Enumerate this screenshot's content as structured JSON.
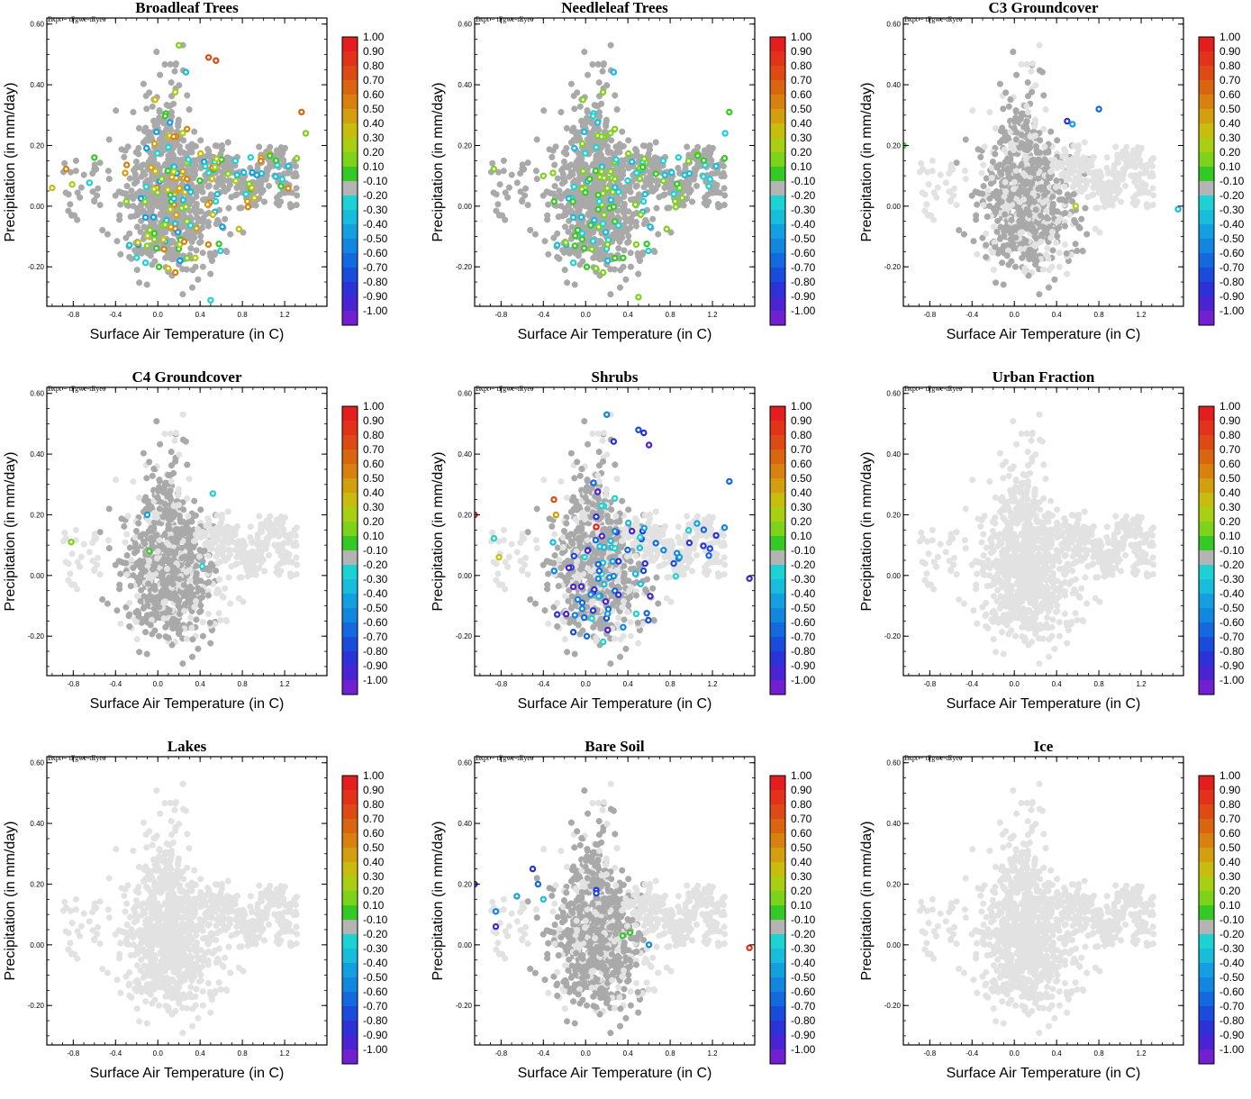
{
  "figure": {
    "expt_label": "Expt = tFgwe-tEyee",
    "xlabel": "Surface Air Temperature (in C)",
    "ylabel": "Precipitation (in mm/day)",
    "xticks": [
      "-0.8",
      "-0.4",
      "0.0",
      "0.4",
      "0.8",
      "1.2"
    ],
    "yticks": [
      "0.60",
      "0.40",
      "0.20",
      "0.00",
      "-0.20"
    ],
    "colorbar_labels": [
      "1.00",
      "0.90",
      "0.80",
      "0.70",
      "0.60",
      "0.50",
      "0.40",
      "0.30",
      "0.20",
      "0.10",
      "-0.10",
      "-0.20",
      "-0.30",
      "-0.40",
      "-0.50",
      "-0.60",
      "-0.70",
      "-0.80",
      "-0.90",
      "-1.00"
    ],
    "colorbar_colors": [
      "#e41e1e",
      "#e2321a",
      "#de4a14",
      "#d96511",
      "#d8810f",
      "#d49f0e",
      "#c8bc0f",
      "#a9cf14",
      "#7dd31a",
      "#35c926",
      "#b4b4b4",
      "#1dd2d2",
      "#17bddb",
      "#139fe0",
      "#1386e0",
      "#1469df",
      "#1a4cdc",
      "#2c31d8",
      "#4a24d3",
      "#7020cf"
    ],
    "point_colors": {
      "gray": "#a9a9a9",
      "light_gray": "#e2e2e2"
    }
  },
  "chart_data": [
    {
      "type": "scatter",
      "title": "Broadleaf Trees",
      "xlabel": "Surface Air Temperature (in C)",
      "ylabel": "Precipitation (in mm/day)",
      "xlim": [
        -1.05,
        1.6
      ],
      "ylim": [
        -0.33,
        0.62
      ],
      "background": "gray",
      "highlight_density": 0.14,
      "highlight_bins": [
        4,
        5,
        6,
        7,
        8,
        9,
        11,
        12,
        13
      ],
      "outliers": [
        {
          "x": 0.55,
          "y": 0.48,
          "c": 2
        },
        {
          "x": 0.48,
          "y": 0.49,
          "c": 2
        },
        {
          "x": 0.2,
          "y": 0.53,
          "c": 8
        },
        {
          "x": -1.0,
          "y": 0.06,
          "c": 6
        },
        {
          "x": 1.36,
          "y": 0.31,
          "c": 3
        },
        {
          "x": 1.4,
          "y": 0.24,
          "c": 8
        },
        {
          "x": -0.6,
          "y": 0.16,
          "c": 9
        },
        {
          "x": -0.2,
          "y": -0.17,
          "c": 11
        },
        {
          "x": 0.5,
          "y": -0.31,
          "c": 11
        }
      ]
    },
    {
      "type": "scatter",
      "title": "Needleleaf Trees",
      "xlabel": "Surface Air Temperature (in C)",
      "ylabel": "Precipitation (in mm/day)",
      "xlim": [
        -1.05,
        1.6
      ],
      "ylim": [
        -0.33,
        0.62
      ],
      "background": "gray",
      "highlight_density": 0.12,
      "highlight_bins": [
        8,
        8,
        9,
        11,
        12
      ],
      "outliers": [
        {
          "x": 1.36,
          "y": 0.31,
          "c": 9
        },
        {
          "x": 1.32,
          "y": 0.24,
          "c": 11
        },
        {
          "x": -0.4,
          "y": 0.1,
          "c": 8
        },
        {
          "x": 0.5,
          "y": -0.3,
          "c": 8
        }
      ]
    },
    {
      "type": "scatter",
      "title": "C3 Groundcover",
      "xlabel": "Surface Air Temperature (in C)",
      "ylabel": "Precipitation (in mm/day)",
      "xlim": [
        -1.05,
        1.6
      ],
      "ylim": [
        -0.33,
        0.62
      ],
      "background": "mixed",
      "highlight_density": 0,
      "highlight_bins": [],
      "outliers": [
        {
          "x": 0.8,
          "y": 0.32,
          "c": 15
        },
        {
          "x": 0.5,
          "y": 0.28,
          "c": 17
        },
        {
          "x": 0.55,
          "y": 0.27,
          "c": 13
        },
        {
          "x": 0.58,
          "y": 0.0,
          "c": 7
        },
        {
          "x": -1.05,
          "y": 0.2,
          "c": 9
        },
        {
          "x": 1.55,
          "y": -0.01,
          "c": 12
        }
      ]
    },
    {
      "type": "scatter",
      "title": "C4 Groundcover",
      "xlabel": "Surface Air Temperature (in C)",
      "ylabel": "Precipitation (in mm/day)",
      "xlim": [
        -1.05,
        1.6
      ],
      "ylim": [
        -0.33,
        0.62
      ],
      "background": "mixed_left",
      "highlight_density": 0,
      "highlight_bins": [],
      "outliers": [
        {
          "x": -0.82,
          "y": 0.11,
          "c": 8
        },
        {
          "x": 0.52,
          "y": 0.27,
          "c": 11
        },
        {
          "x": -0.1,
          "y": 0.2,
          "c": 13
        },
        {
          "x": -0.08,
          "y": 0.08,
          "c": 9
        },
        {
          "x": 0.42,
          "y": 0.03,
          "c": 11
        }
      ]
    },
    {
      "type": "scatter",
      "title": "Shrubs",
      "xlabel": "Surface Air Temperature (in C)",
      "ylabel": "Precipitation (in mm/day)",
      "xlim": [
        -1.05,
        1.6
      ],
      "ylim": [
        -0.33,
        0.62
      ],
      "background": "mixed",
      "highlight_density": 0.09,
      "highlight_bins": [
        11,
        12,
        13,
        14,
        15,
        16,
        17,
        18
      ],
      "outliers": [
        {
          "x": 0.2,
          "y": 0.53,
          "c": 14
        },
        {
          "x": 0.5,
          "y": 0.48,
          "c": 16
        },
        {
          "x": 0.55,
          "y": 0.47,
          "c": 17
        },
        {
          "x": 0.6,
          "y": 0.43,
          "c": 18
        },
        {
          "x": 1.36,
          "y": 0.31,
          "c": 15
        },
        {
          "x": -0.3,
          "y": 0.25,
          "c": 2
        },
        {
          "x": -0.28,
          "y": 0.2,
          "c": 5
        },
        {
          "x": 0.1,
          "y": 0.16,
          "c": 0
        },
        {
          "x": -1.05,
          "y": 0.2,
          "c": 0
        },
        {
          "x": -0.82,
          "y": 0.06,
          "c": 6
        },
        {
          "x": 1.55,
          "y": -0.01,
          "c": 18
        }
      ]
    },
    {
      "type": "scatter",
      "title": "Urban Fraction",
      "xlabel": "Surface Air Temperature (in C)",
      "ylabel": "Precipitation (in mm/day)",
      "xlim": [
        -1.05,
        1.6
      ],
      "ylim": [
        -0.33,
        0.62
      ],
      "background": "light",
      "highlight_density": 0,
      "highlight_bins": [],
      "outliers": []
    },
    {
      "type": "scatter",
      "title": "Lakes",
      "xlabel": "Surface Air Temperature (in C)",
      "ylabel": "Precipitation (in mm/day)",
      "xlim": [
        -1.05,
        1.6
      ],
      "ylim": [
        -0.33,
        0.62
      ],
      "background": "light",
      "highlight_density": 0,
      "highlight_bins": [],
      "outliers": []
    },
    {
      "type": "scatter",
      "title": "Bare Soil",
      "xlabel": "Surface Air Temperature (in C)",
      "ylabel": "Precipitation (in mm/day)",
      "xlim": [
        -1.05,
        1.6
      ],
      "ylim": [
        -0.33,
        0.62
      ],
      "background": "mixed_left",
      "highlight_density": 0,
      "highlight_bins": [],
      "outliers": [
        {
          "x": -0.5,
          "y": 0.25,
          "c": 17
        },
        {
          "x": -0.45,
          "y": 0.2,
          "c": 15
        },
        {
          "x": -0.65,
          "y": 0.16,
          "c": 13
        },
        {
          "x": -0.4,
          "y": 0.15,
          "c": 12
        },
        {
          "x": -0.85,
          "y": 0.11,
          "c": 14
        },
        {
          "x": -0.85,
          "y": 0.06,
          "c": 18
        },
        {
          "x": -1.05,
          "y": 0.2,
          "c": 18
        },
        {
          "x": 0.1,
          "y": 0.18,
          "c": 17
        },
        {
          "x": 0.1,
          "y": 0.17,
          "c": 16
        },
        {
          "x": 0.35,
          "y": 0.03,
          "c": 9
        },
        {
          "x": 0.42,
          "y": 0.04,
          "c": 9
        },
        {
          "x": 0.6,
          "y": 0.0,
          "c": 14
        },
        {
          "x": 1.55,
          "y": -0.01,
          "c": 1
        }
      ]
    },
    {
      "type": "scatter",
      "title": "Ice",
      "xlabel": "Surface Air Temperature (in C)",
      "ylabel": "Precipitation (in mm/day)",
      "xlim": [
        -1.05,
        1.6
      ],
      "ylim": [
        -0.33,
        0.62
      ],
      "background": "light",
      "highlight_density": 0,
      "highlight_bins": [],
      "outliers": []
    }
  ]
}
